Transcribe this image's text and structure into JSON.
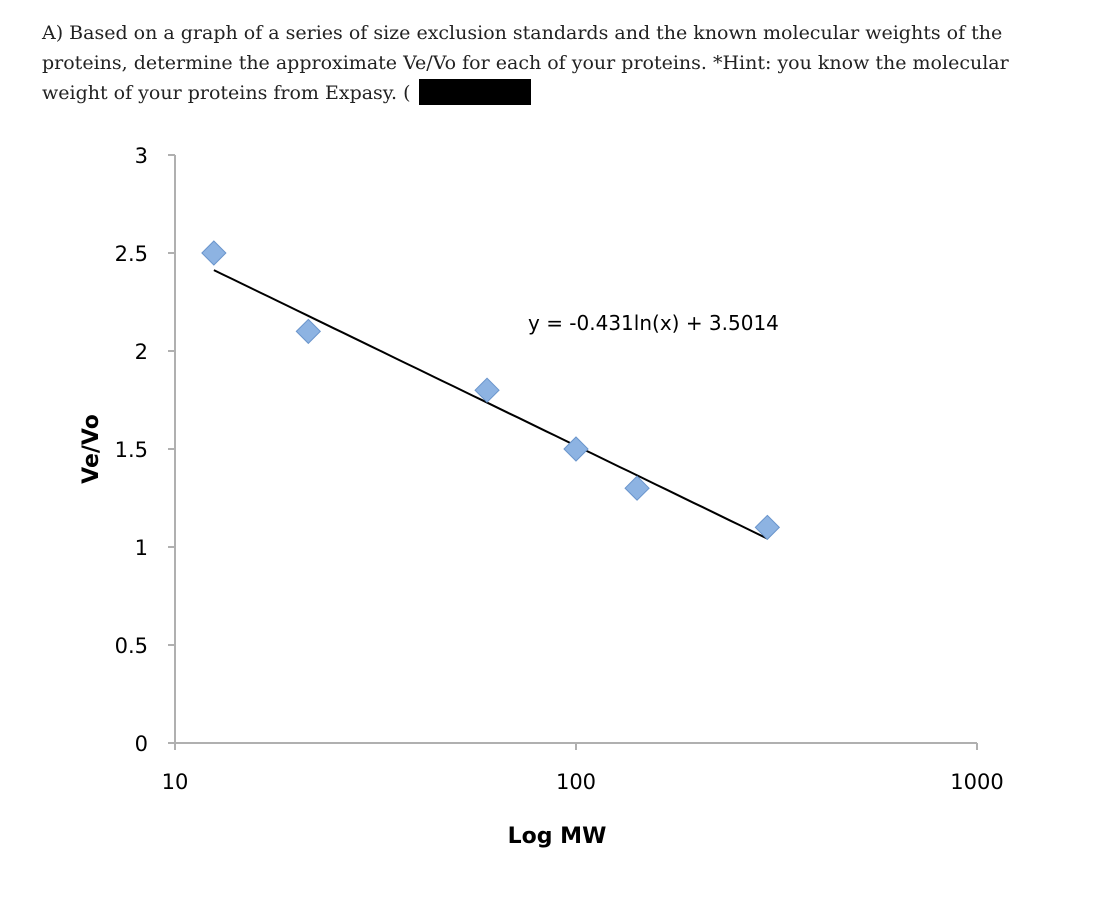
{
  "question": {
    "text": "A) Based on a graph of a series of size exclusion standards and the known molecular weights of the proteins, determine the approximate Ve/Vo for each of your proteins. *Hint: you know the molecular weight of your proteins from Expasy. ("
  },
  "chart_data": {
    "type": "scatter",
    "title": "",
    "xlabel": "Log MW",
    "ylabel": "Ve/Vo",
    "x_scale": "log",
    "xlim": [
      10,
      1000
    ],
    "ylim": [
      0,
      3
    ],
    "x_ticks": [
      10,
      100,
      1000
    ],
    "y_ticks": [
      0,
      0.5,
      1,
      1.5,
      2,
      2.5,
      3
    ],
    "y_tick_labels": [
      "0",
      "0.5",
      "1",
      "1.5",
      "2",
      "2.5",
      "3"
    ],
    "x_tick_labels": [
      "10",
      "100",
      "1000"
    ],
    "grid": false,
    "legend": "none",
    "series": [
      {
        "marker": "diamond",
        "color": "#8db3e2",
        "x": [
          12.5,
          21.5,
          60,
          100,
          142,
          300
        ],
        "y": [
          2.5,
          2.1,
          1.8,
          1.5,
          1.3,
          1.1
        ]
      }
    ],
    "trendline": {
      "type": "logarithmic",
      "slope": -0.431,
      "intercept": 3.5014,
      "x_range": [
        12.5,
        300
      ],
      "color": "#000000",
      "equation_label": "y = -0.431ln(x) + 3.5014"
    }
  }
}
